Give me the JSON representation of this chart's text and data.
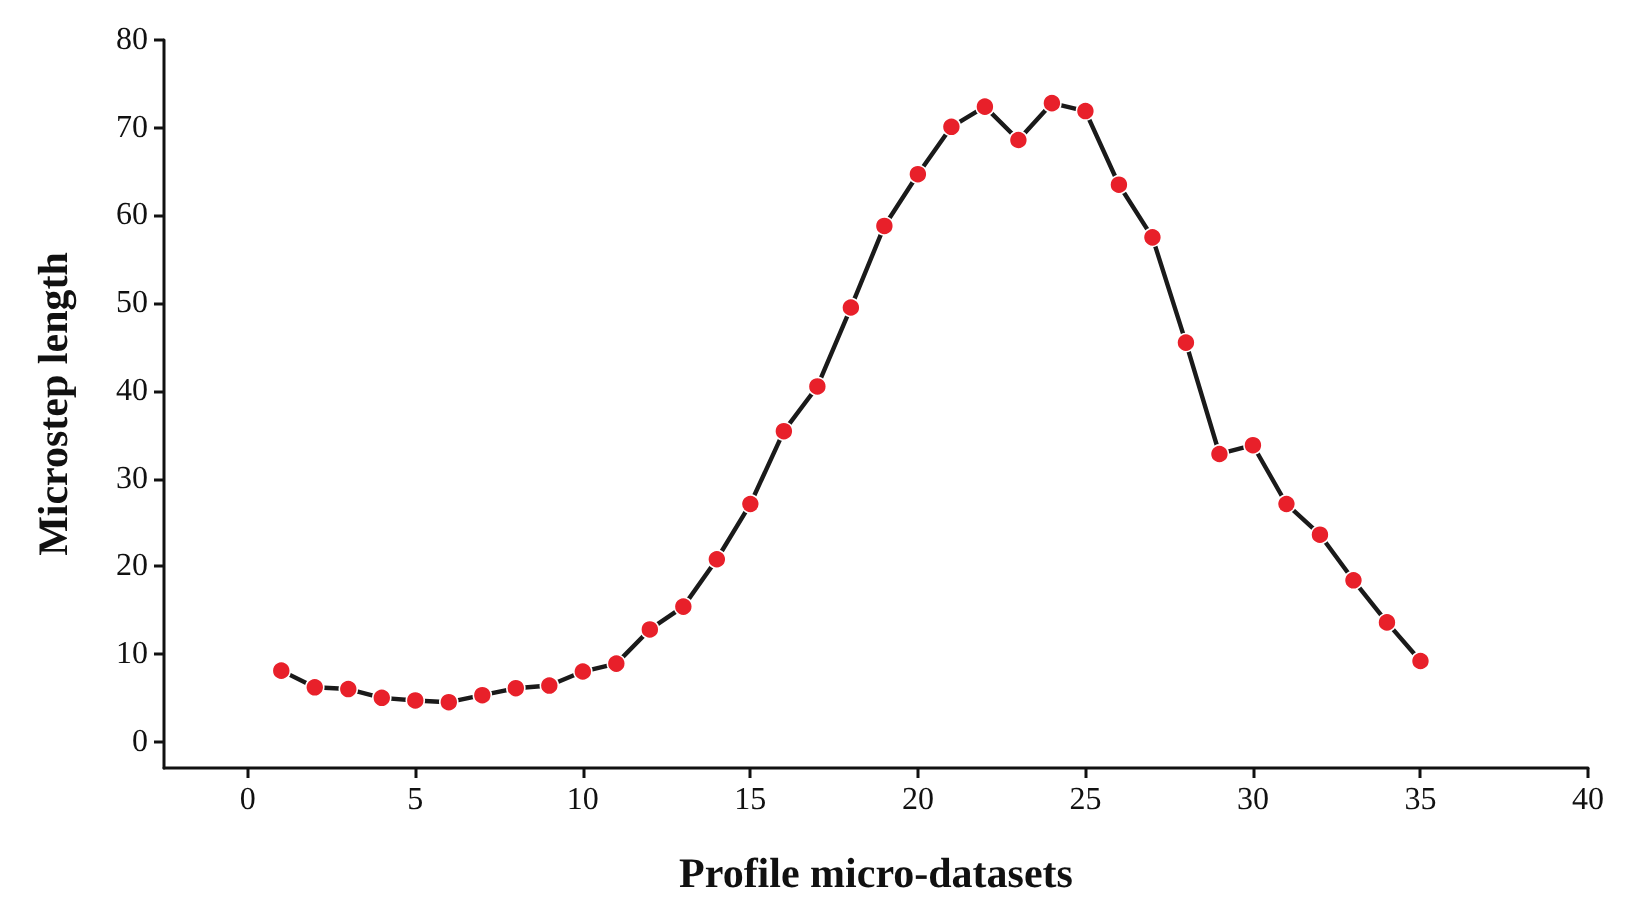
{
  "chart_data": {
    "type": "line",
    "xlabel": "Profile micro-datasets",
    "ylabel": "Microstep length",
    "x": [
      1,
      2,
      3,
      4,
      5,
      6,
      7,
      8,
      9,
      10,
      11,
      12,
      13,
      14,
      15,
      16,
      17,
      18,
      19,
      20,
      21,
      22,
      23,
      24,
      25,
      26,
      27,
      28,
      29,
      30,
      31,
      32,
      33,
      34,
      35
    ],
    "series": [
      {
        "color": "#e8202a",
        "values": [
          8.1,
          6.2,
          6.0,
          5.0,
          4.7,
          4.5,
          5.3,
          6.1,
          6.4,
          8.0,
          8.9,
          12.8,
          15.4,
          20.8,
          27.1,
          35.4,
          40.5,
          49.5,
          58.8,
          64.7,
          70.1,
          72.4,
          68.6,
          72.8,
          71.9,
          63.5,
          57.5,
          45.5,
          32.8,
          33.8,
          27.1,
          23.6,
          18.4,
          13.6,
          9.2
        ]
      }
    ],
    "marker": "circle",
    "line_style": "solid",
    "xlim": [
      -2.5,
      40
    ],
    "xticks": [
      0,
      5,
      10,
      15,
      20,
      25,
      30,
      35,
      40
    ],
    "ylim": [
      -3,
      80
    ],
    "yticks": [
      0,
      10,
      20,
      30,
      40,
      50,
      60,
      70,
      80
    ]
  }
}
